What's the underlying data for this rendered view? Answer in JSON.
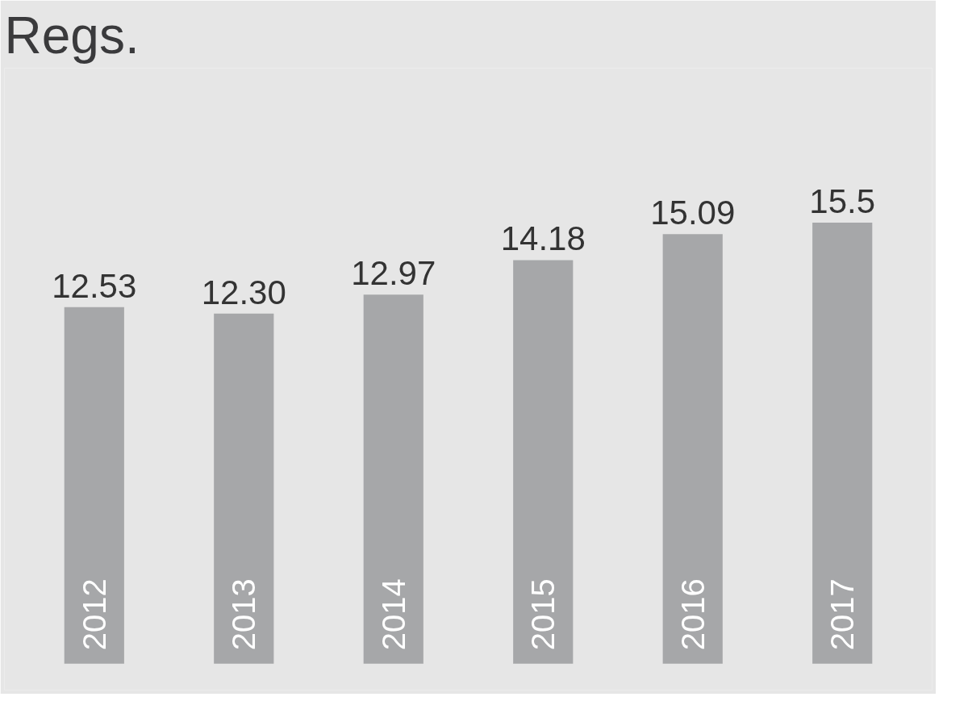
{
  "chart_data": {
    "type": "bar",
    "title": "Regs.",
    "categories": [
      "2012",
      "2013",
      "2014",
      "2015",
      "2016",
      "2017"
    ],
    "values": [
      12.53,
      12.3,
      12.97,
      14.18,
      15.09,
      15.5
    ],
    "value_labels": [
      "12.53",
      "12.30",
      "12.97",
      "14.18",
      "15.09",
      "15.5"
    ],
    "color": "#a6a7a9"
  }
}
